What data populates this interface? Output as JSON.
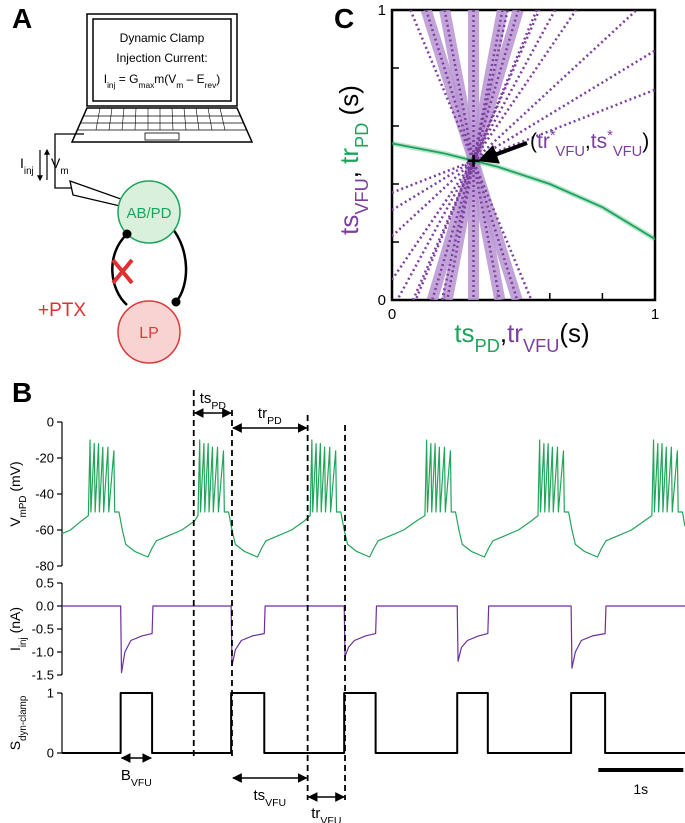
{
  "panel_labels": [
    "A",
    "B",
    "C"
  ],
  "panel_a": {
    "screen_lines": [
      {
        "parts": [
          {
            "t": "Dynamic Clamp"
          }
        ]
      },
      {
        "parts": [
          {
            "t": "Injection Current:"
          }
        ]
      },
      {
        "parts": [
          {
            "t": "I"
          },
          {
            "sub": "inj"
          },
          {
            "t": " = G"
          },
          {
            "sub": "max"
          },
          {
            "t": "m(V"
          },
          {
            "sub": "m"
          },
          {
            "t": " – E"
          },
          {
            "sub": "rev"
          },
          {
            "t": ")"
          }
        ]
      }
    ],
    "current_label": {
      "parts": [
        {
          "t": "I"
        },
        {
          "sub": "inj"
        }
      ]
    },
    "voltage_label": {
      "parts": [
        {
          "t": "V"
        },
        {
          "sub": "m"
        }
      ]
    },
    "cell_1": "AB/PD",
    "cell_2": "LP",
    "drug": "+PTX"
  },
  "chart_data": [
    {
      "type": "line",
      "xlim": [
        0,
        1
      ],
      "ylim": [
        0,
        1
      ],
      "xticks": [
        0,
        1
      ],
      "yticks": [
        0,
        1
      ],
      "minor_ticks": [
        0.2,
        0.4,
        0.6,
        0.8
      ],
      "xlabel": {
        "parts": [
          {
            "t": "ts",
            "color": "#1aa55a"
          },
          {
            "sub": "PD",
            "color": "#1aa55a"
          },
          {
            "t": ","
          },
          {
            "t": "tr",
            "color": "#7b3fa0"
          },
          {
            "sub": "VFU",
            "color": "#7b3fa0"
          },
          {
            "t": "(s)"
          }
        ]
      },
      "ylabel": {
        "parts": [
          {
            "t": "ts",
            "color": "#7b3fa0"
          },
          {
            "sub": "VFU",
            "color": "#7b3fa0"
          },
          {
            "t": ", "
          },
          {
            "t": "tr",
            "color": "#1aa55a"
          },
          {
            "sub": "PD",
            "color": "#1aa55a"
          },
          {
            "t": " (s)"
          }
        ]
      },
      "series": [
        {
          "color": "#1aa55a",
          "x": [
            0,
            0.2,
            0.31,
            0.4,
            0.6,
            0.8,
            1
          ],
          "values": [
            0.54,
            0.505,
            0.48,
            0.46,
            0.4,
            0.32,
            0.21
          ]
        }
      ],
      "line_color": "#7b3fa0",
      "band_color": "#b894d2",
      "lines": [
        {
          "style": "band",
          "x": [
            0.13,
            0.476
          ],
          "y": [
            1,
            0
          ]
        },
        {
          "style": "band",
          "x": [
            0.2,
            0.41
          ],
          "y": [
            1,
            0
          ]
        },
        {
          "style": "band",
          "x": [
            0.31,
            0.31
          ],
          "y": [
            1,
            0
          ]
        },
        {
          "style": "band",
          "x": [
            0.42,
            0.21
          ],
          "y": [
            1,
            0
          ]
        },
        {
          "style": "band",
          "x": [
            0.48,
            0.153
          ],
          "y": [
            1,
            0
          ]
        },
        {
          "style": "dotted",
          "x": [
            0.07,
            0.53
          ],
          "y": [
            1,
            0
          ]
        },
        {
          "style": "dotted",
          "x": [
            0,
            0.7
          ],
          "y": [
            0.07,
            1
          ]
        },
        {
          "style": "dotted",
          "x": [
            0,
            0.93
          ],
          "y": [
            0.22,
            1
          ]
        },
        {
          "style": "dotted",
          "x": [
            0,
            1
          ],
          "y": [
            0.37,
            0.725
          ]
        },
        {
          "style": "dotted",
          "x": [
            0.08,
            0.56
          ],
          "y": [
            0,
            1
          ]
        },
        {
          "style": "dotted",
          "x": [
            0.19,
            0.44
          ],
          "y": [
            0,
            1
          ]
        },
        {
          "style": "dotted",
          "x": [
            0.55,
            0.09
          ],
          "y": [
            1,
            0
          ]
        },
        {
          "style": "dotted",
          "x": [
            0.62,
            0.02
          ],
          "y": [
            1,
            0
          ]
        },
        {
          "style": "dotted",
          "x": [
            0,
            1
          ],
          "y": [
            0.31,
            0.86
          ]
        }
      ],
      "annotation": {
        "parts": [
          {
            "t": "("
          },
          {
            "t": "tr",
            "color": "#7b3fa0"
          },
          {
            "sup": "*",
            "color": "#7b3fa0"
          },
          {
            "sub": "VFU",
            "color": "#7b3fa0"
          },
          {
            "t": ","
          },
          {
            "t": "ts",
            "color": "#7b3fa0"
          },
          {
            "sup": "*",
            "color": "#7b3fa0"
          },
          {
            "sub": "VFU",
            "color": "#7b3fa0"
          },
          {
            "t": ")"
          }
        ]
      },
      "annotation_xy": [
        0.31,
        0.48
      ]
    },
    {
      "type": "line",
      "xlim": [
        0,
        7.33
      ],
      "ylim": [
        -80,
        0
      ],
      "yticks": [
        0,
        -20,
        -40,
        -60,
        -80
      ],
      "ylabel": {
        "parts": [
          {
            "t": "V"
          },
          {
            "sub": "mPD"
          },
          {
            "t": " (mV)"
          }
        ]
      },
      "series": [
        {
          "color": "#22a55a",
          "x": [
            0,
            0.1,
            0.2,
            0.31,
            0.33,
            0.34,
            0.38,
            0.39,
            0.43,
            0.44,
            0.48,
            0.49,
            0.54,
            0.55,
            0.61,
            0.62,
            0.67,
            0.71,
            0.75,
            0.86,
            1.01,
            1.06,
            1.11,
            1.26,
            1.41,
            1.56,
            1.6,
            1.62,
            1.63,
            1.67,
            1.68,
            1.72,
            1.73,
            1.77,
            1.78,
            1.83,
            1.84,
            1.9,
            1.91,
            1.96,
            2.0,
            2.04,
            2.15,
            2.3,
            2.35,
            2.4,
            2.55,
            2.7,
            2.85,
            2.92,
            2.94,
            2.95,
            2.99,
            3.0,
            3.04,
            3.05,
            3.09,
            3.1,
            3.15,
            3.16,
            3.22,
            3.23,
            3.28,
            3.32,
            3.36,
            3.47,
            3.62,
            3.67,
            3.72,
            3.87,
            4.02,
            4.17,
            4.27,
            4.29,
            4.3,
            4.34,
            4.35,
            4.39,
            4.4,
            4.44,
            4.45,
            4.5,
            4.51,
            4.57,
            4.58,
            4.63,
            4.67,
            4.71,
            4.82,
            4.97,
            5.02,
            5.07,
            5.22,
            5.37,
            5.52,
            5.6,
            5.62,
            5.63,
            5.67,
            5.68,
            5.72,
            5.73,
            5.77,
            5.78,
            5.83,
            5.84,
            5.9,
            5.91,
            5.96,
            6.0,
            6.04,
            6.15,
            6.3,
            6.35,
            6.4,
            6.55,
            6.7,
            6.85,
            6.94,
            6.96,
            6.97,
            7.01,
            7.02,
            7.06,
            7.07,
            7.11,
            7.12,
            7.17,
            7.18,
            7.24,
            7.25,
            7.3,
            7.33
          ],
          "values": [
            -62,
            -60,
            -56,
            -52,
            -10,
            -50,
            -12,
            -50,
            -12,
            -50,
            -14,
            -50,
            -14,
            -50,
            -16,
            -50,
            -50,
            -60,
            -68,
            -72,
            -75,
            -70,
            -66,
            -63,
            -60,
            -55,
            -52,
            -10,
            -50,
            -12,
            -50,
            -12,
            -50,
            -14,
            -50,
            -14,
            -50,
            -16,
            -50,
            -50,
            -60,
            -68,
            -72,
            -75,
            -70,
            -66,
            -63,
            -60,
            -55,
            -52,
            -10,
            -50,
            -12,
            -50,
            -12,
            -50,
            -14,
            -50,
            -14,
            -50,
            -16,
            -50,
            -50,
            -60,
            -68,
            -72,
            -75,
            -70,
            -66,
            -63,
            -60,
            -55,
            -52,
            -10,
            -50,
            -12,
            -50,
            -12,
            -50,
            -14,
            -50,
            -14,
            -50,
            -16,
            -50,
            -50,
            -60,
            -68,
            -72,
            -75,
            -70,
            -66,
            -63,
            -60,
            -55,
            -52,
            -10,
            -50,
            -12,
            -50,
            -12,
            -50,
            -14,
            -50,
            -14,
            -50,
            -16,
            -50,
            -50,
            -60,
            -68,
            -72,
            -75,
            -70,
            -66,
            -63,
            -60,
            -55,
            -52,
            -10,
            -50,
            -12,
            -50,
            -12,
            -50,
            -14,
            -50,
            -14,
            -50,
            -16,
            -50,
            -50,
            -58
          ]
        }
      ]
    },
    {
      "type": "line",
      "xlim": [
        0,
        7.33
      ],
      "ylim": [
        -1.5,
        0.5
      ],
      "yticks": [
        0.5,
        {
          "value": 0,
          "label": "0.0"
        },
        -0.5,
        {
          "value": -1,
          "label": "-1.0"
        },
        -1.5
      ],
      "ylabel": {
        "parts": [
          {
            "t": "I"
          },
          {
            "sub": "inj"
          },
          {
            "t": " (nA)"
          }
        ]
      },
      "series": [
        {
          "color": "#6b2fa0",
          "x": [
            0,
            0.69,
            0.7,
            0.74,
            0.81,
            0.94,
            1.06,
            1.07,
            1.99,
            2.0,
            2.04,
            2.11,
            2.24,
            2.38,
            2.39,
            3.32,
            3.33,
            3.37,
            3.44,
            3.57,
            3.69,
            3.7,
            4.65,
            4.66,
            4.7,
            4.77,
            4.9,
            5.01,
            5.02,
            5.99,
            6.0,
            6.04,
            6.11,
            6.24,
            6.39,
            6.4,
            7.33
          ],
          "values": [
            0,
            0,
            -1.45,
            -1.0,
            -0.75,
            -0.65,
            -0.6,
            0,
            0,
            -1.3,
            -0.95,
            -0.75,
            -0.65,
            -0.6,
            0,
            0,
            -1.1,
            -0.9,
            -0.75,
            -0.65,
            -0.6,
            0,
            0,
            -1.2,
            -0.9,
            -0.75,
            -0.65,
            -0.6,
            0,
            0,
            -1.35,
            -1.0,
            -0.75,
            -0.65,
            -0.6,
            0,
            0
          ]
        }
      ]
    },
    {
      "type": "line",
      "xlim": [
        0,
        7.33
      ],
      "ylim": [
        0,
        1
      ],
      "yticks": [
        0,
        1
      ],
      "ylabel": {
        "parts": [
          {
            "t": "S"
          },
          {
            "sub": "dyn-clamp"
          }
        ]
      },
      "series": [
        {
          "color": "#000000",
          "x": [
            0,
            0.69,
            0.69,
            1.06,
            1.06,
            1.99,
            1.99,
            2.38,
            2.38,
            3.32,
            3.32,
            3.69,
            3.69,
            4.65,
            4.65,
            5.01,
            5.01,
            5.99,
            5.99,
            6.39,
            6.39,
            7.33
          ],
          "values": [
            0,
            0,
            1,
            1,
            0,
            0,
            1,
            1,
            0,
            0,
            1,
            1,
            0,
            0,
            1,
            1,
            0,
            0,
            1,
            1,
            0,
            0
          ]
        }
      ]
    }
  ],
  "panel_b": {
    "dashed_times": [
      1.55,
      2.0,
      2.89,
      3.33
    ],
    "intervals": [
      {
        "parts": [
          {
            "t": "ts"
          },
          {
            "sub": "PD"
          }
        ],
        "x": [
          1.55,
          2.0
        ]
      },
      {
        "parts": [
          {
            "t": "tr"
          },
          {
            "sub": "PD"
          }
        ],
        "x": [
          2.0,
          2.89
        ]
      },
      {
        "parts": [
          {
            "t": "B"
          },
          {
            "sub": "VFU"
          }
        ],
        "x": [
          0.69,
          1.06
        ]
      },
      {
        "parts": [
          {
            "t": "ts"
          },
          {
            "sub": "VFU"
          }
        ],
        "x": [
          2.0,
          2.89
        ]
      },
      {
        "parts": [
          {
            "t": "tr"
          },
          {
            "sub": "VFU"
          }
        ],
        "x": [
          2.89,
          3.33
        ]
      }
    ],
    "scale_bar": {
      "x": [
        6.31,
        7.31
      ],
      "label": "1s"
    }
  }
}
